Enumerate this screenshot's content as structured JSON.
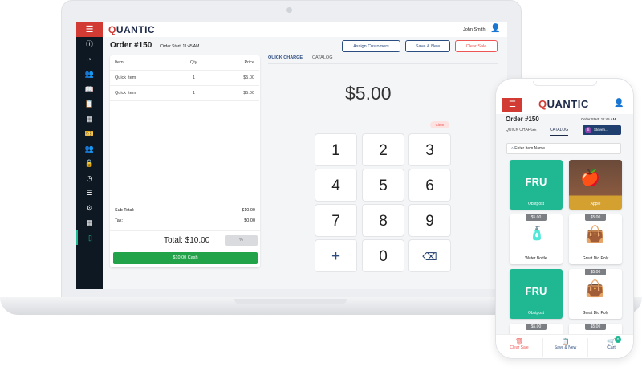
{
  "brand": {
    "logo_q": "Q",
    "logo_rest": "UANTIC",
    "accent": "#d23a34"
  },
  "header": {
    "user": "John Smith"
  },
  "order": {
    "title": "Order #150",
    "start": "Order Start: 11:45 AM"
  },
  "actions": {
    "assign": "Assign Customers",
    "save": "Save & New",
    "clear": "Clear Sale"
  },
  "table": {
    "headers": [
      "Item",
      "Qty",
      "Price"
    ],
    "rows": [
      {
        "item": "Quick Item",
        "qty": "1",
        "price": "$5.00"
      },
      {
        "item": "Quick Item",
        "qty": "1",
        "price": "$5.00"
      }
    ]
  },
  "summary": {
    "subtotal_label": "Sub Total:",
    "subtotal": "$10.00",
    "tax_label": "Tax:",
    "tax": "$0.00",
    "total": "Total: $10.00",
    "discount": "%",
    "pay": "$10.00 Cash"
  },
  "tabs": {
    "quick": "QUICK CHARGE",
    "catalog": "CATALOG"
  },
  "keypad": {
    "amount": "$5.00",
    "clear": "Clear",
    "keys": [
      "1",
      "2",
      "3",
      "4",
      "5",
      "6",
      "7",
      "8",
      "9",
      "+",
      "0",
      "⌫"
    ]
  },
  "phone": {
    "customer_initial": "S",
    "customer": "Steven...",
    "search_placeholder": "Enter Item Name",
    "tiles": [
      {
        "label": "Obstpost",
        "code": "FRU",
        "price": ""
      },
      {
        "label": "Apple",
        "price": ""
      },
      {
        "label": "Water Bottle",
        "price": "$5.00"
      },
      {
        "label": "Great Did Poly",
        "price": "$5.00"
      },
      {
        "label": "Obstpost",
        "code": "FRU",
        "price": ""
      },
      {
        "label": "Great Did Poly",
        "price": "$5.00"
      },
      {
        "label": "",
        "price": "$5.00"
      },
      {
        "label": "",
        "price": "$5.00"
      }
    ],
    "bottom": {
      "clear": "Clear Sale",
      "save": "Save & New",
      "cart": "Cart",
      "cart_count": "0"
    }
  }
}
